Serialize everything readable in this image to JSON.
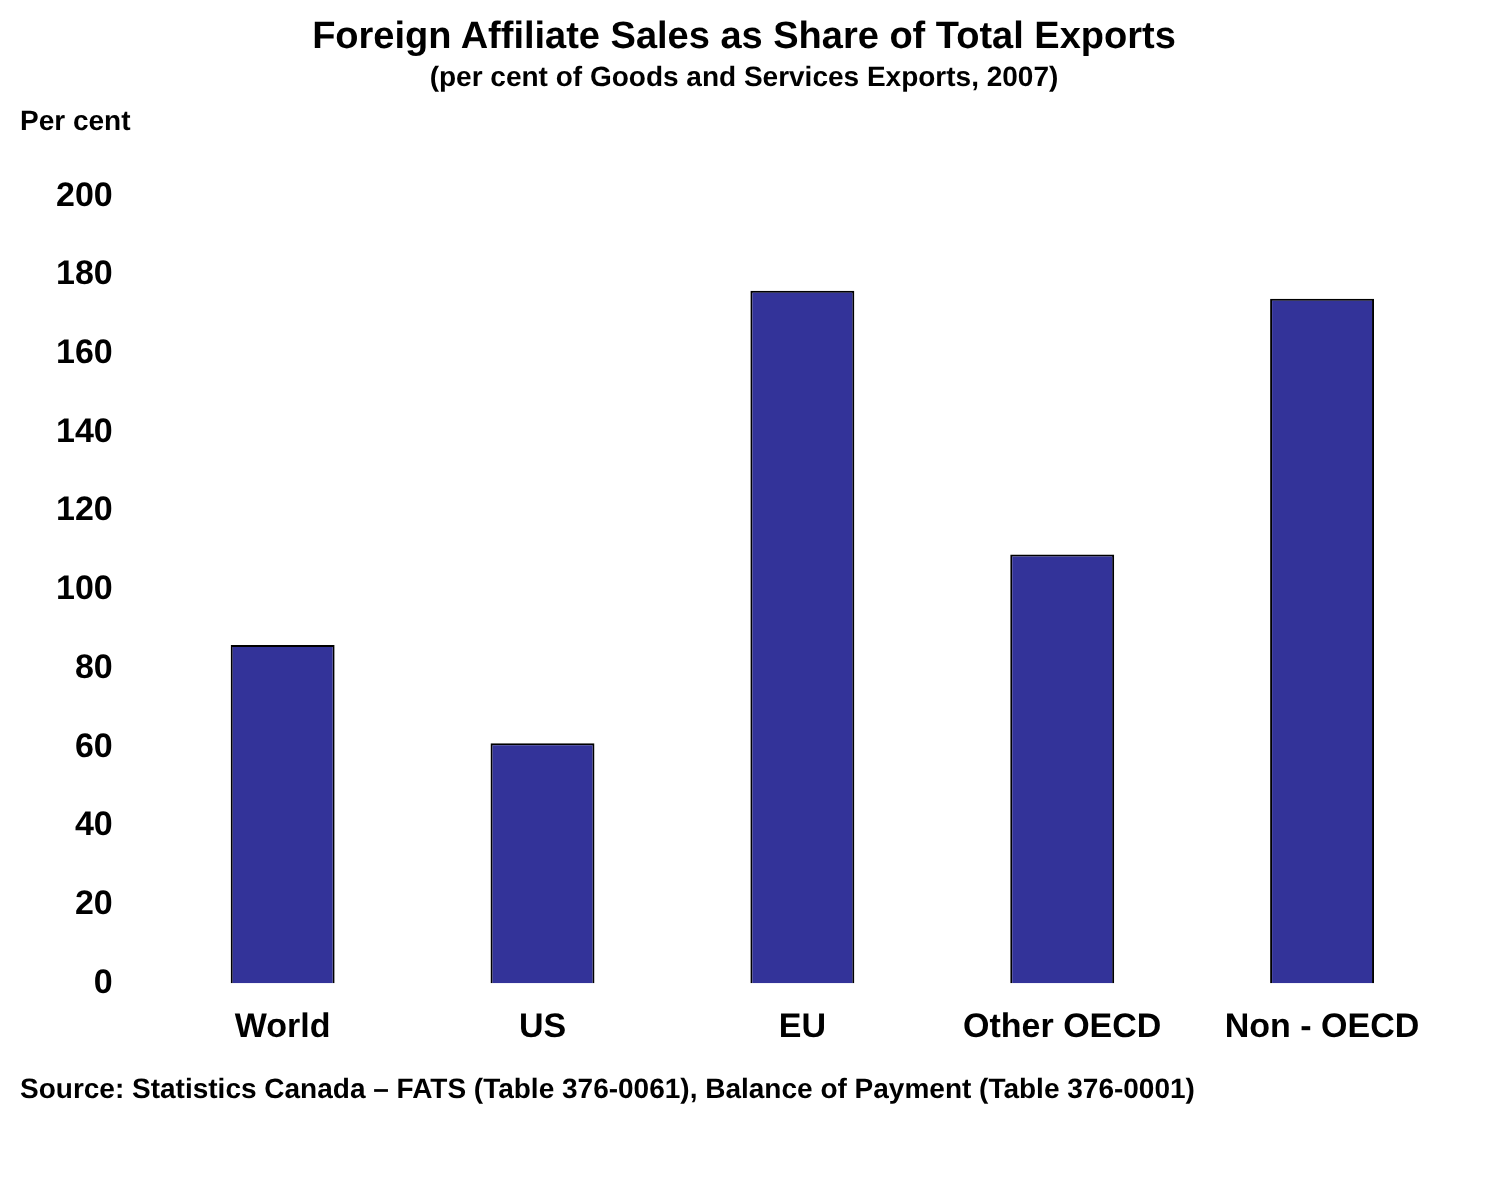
{
  "chart_data": {
    "type": "bar",
    "title": "Foreign Affiliate Sales as Share of Total Exports",
    "subtitle": "(per cent of Goods and Services Exports, 2007)",
    "ylabel": "Per cent",
    "categories": [
      "World",
      "US",
      "EU",
      "Other OECD",
      "Non - OECD"
    ],
    "values": [
      86,
      61,
      176,
      109,
      174
    ],
    "color": "#333399",
    "ylim": [
      0,
      200
    ],
    "yticks": [
      0,
      20,
      40,
      60,
      80,
      100,
      120,
      140,
      160,
      180,
      200
    ],
    "grid": false,
    "legend": false,
    "annotations": [
      "Source: Statistics Canada – FATS (Table 376-0061), Balance of Payment (Table 376-0001)"
    ]
  }
}
